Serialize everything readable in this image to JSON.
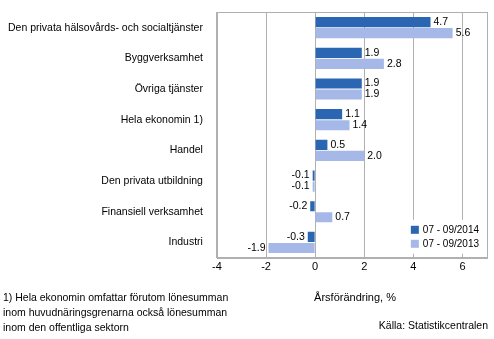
{
  "chart_data": {
    "type": "bar",
    "orientation": "horizontal",
    "categories": [
      "Den privata hälsovårds- och socialtjänster",
      "Byggverksamhet",
      "Övriga tjänster",
      "Hela ekonomin 1)",
      "Handel",
      "Den privata utbildning",
      "Finansiell verksamhet",
      "Industri"
    ],
    "series": [
      {
        "name": "07 - 09/2014",
        "color": "#2a66b1",
        "values": [
          4.7,
          1.9,
          1.9,
          1.1,
          0.5,
          -0.1,
          -0.2,
          -0.3
        ],
        "value_labels": [
          "4.7",
          "1.9",
          "1.9",
          "1.1",
          "0.5",
          "-0.1",
          "-0.2",
          "-0.3"
        ]
      },
      {
        "name": "07 - 09/2013",
        "color": "#a6b8e8",
        "values": [
          5.6,
          2.8,
          1.9,
          1.4,
          2.0,
          -0.1,
          0.7,
          -1.9
        ],
        "value_labels": [
          "5.6",
          "2.8",
          "1.9",
          "1.4",
          "2.0",
          "-0.1",
          "0.7",
          "-1.9"
        ]
      }
    ],
    "xlim": [
      -4,
      7
    ],
    "xticks": [
      -4,
      -2,
      0,
      2,
      4,
      6
    ],
    "x_label": "Årsförändring, %",
    "note": [
      "1) Hela ekonomin omfattar förutom lönesumman",
      "inom huvudnäringsgrenarna också lönesumman",
      "inom den offentliga sektorn"
    ],
    "source": "Källa: Statistikcentralen",
    "grid": true,
    "legend": "lower right",
    "data_labels": true
  }
}
